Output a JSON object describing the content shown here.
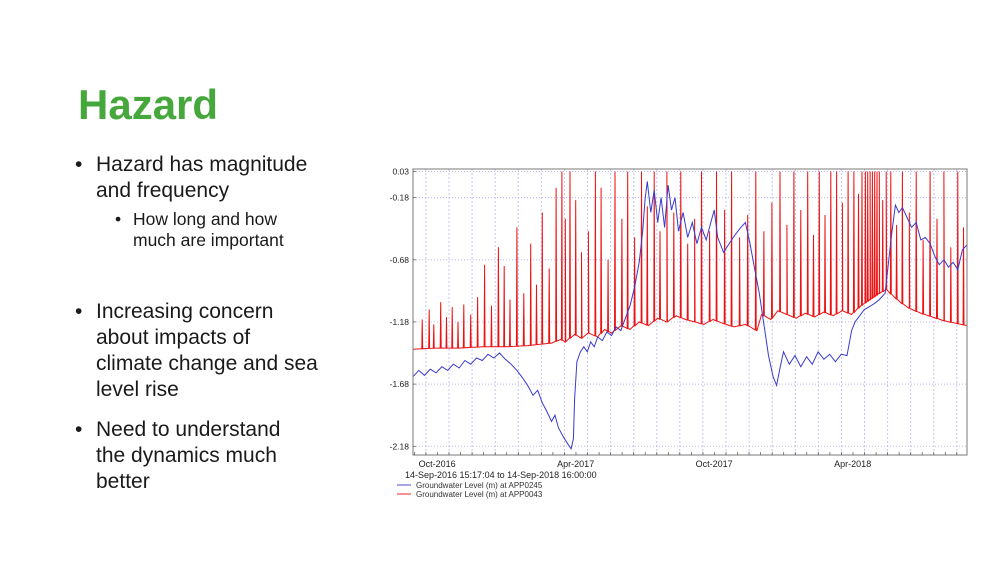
{
  "slide": {
    "title": "Hazard",
    "title_color": "#46a83c",
    "text_color": "#1a1a1a",
    "bullets": [
      {
        "text": "Hazard has magnitude\nand frequency"
      },
      {
        "text": "How long and how\nmuch are important"
      },
      {
        "text": "Increasing concern\nabout impacts of\nclimate change and sea\nlevel rise"
      },
      {
        "text": "Need to understand\nthe dynamics much\nbetter"
      }
    ]
  },
  "chart_data": {
    "type": "line",
    "title": "",
    "subtitle": "14-Sep-2016 15:17:04 to 14-Sep-2018 16:00:00",
    "grid": true,
    "legend_position": "bottom-left",
    "x_axis": {
      "unit": "months since 14-Sep-2016",
      "min": 0,
      "max": 24,
      "labels": [
        "Oct-2016",
        "Apr-2017",
        "Oct-2017",
        "Apr-2018"
      ],
      "label_positions": [
        1.05,
        7.05,
        13.05,
        19.05
      ],
      "month_gridlines": {
        "start": 0.56,
        "step": 1,
        "count": 24
      },
      "minor_tick_step": 0.5
    },
    "y_axis": {
      "unit": "Groundwater Level (m)",
      "min": -2.25,
      "max": 0.05,
      "ticks": [
        0.03,
        -0.18,
        -0.68,
        -1.18,
        -1.68,
        -2.18
      ]
    },
    "colors": {
      "grid": "#c4c4f0",
      "grid_h": "#b8b8ee",
      "border": "#7a7a7a",
      "tick": "#555555"
    },
    "series": [
      {
        "name": "Groundwater Level (m) at APP0245",
        "station": "APP0245",
        "color": "#3a3ace",
        "points": [
          [
            0,
            -1.62
          ],
          [
            0.25,
            -1.57
          ],
          [
            0.5,
            -1.61
          ],
          [
            0.75,
            -1.56
          ],
          [
            1,
            -1.59
          ],
          [
            1.25,
            -1.54
          ],
          [
            1.5,
            -1.57
          ],
          [
            1.75,
            -1.52
          ],
          [
            2,
            -1.55
          ],
          [
            2.25,
            -1.49
          ],
          [
            2.5,
            -1.52
          ],
          [
            2.75,
            -1.47
          ],
          [
            3,
            -1.49
          ],
          [
            3.25,
            -1.44
          ],
          [
            3.5,
            -1.47
          ],
          [
            3.75,
            -1.43
          ],
          [
            4,
            -1.48
          ],
          [
            4.25,
            -1.52
          ],
          [
            4.5,
            -1.57
          ],
          [
            4.75,
            -1.63
          ],
          [
            5,
            -1.7
          ],
          [
            5.2,
            -1.77
          ],
          [
            5.4,
            -1.73
          ],
          [
            5.6,
            -1.83
          ],
          [
            5.8,
            -1.9
          ],
          [
            6,
            -1.98
          ],
          [
            6.15,
            -1.93
          ],
          [
            6.3,
            -2.03
          ],
          [
            6.5,
            -2.1
          ],
          [
            6.7,
            -2.16
          ],
          [
            6.85,
            -2.2
          ],
          [
            6.95,
            -2.12
          ],
          [
            7,
            -1.8
          ],
          [
            7.1,
            -1.5
          ],
          [
            7.25,
            -1.42
          ],
          [
            7.4,
            -1.38
          ],
          [
            7.55,
            -1.42
          ],
          [
            7.7,
            -1.34
          ],
          [
            7.85,
            -1.38
          ],
          [
            8,
            -1.3
          ],
          [
            8.2,
            -1.33
          ],
          [
            8.4,
            -1.26
          ],
          [
            8.6,
            -1.29
          ],
          [
            8.8,
            -1.22
          ],
          [
            9,
            -1.25
          ],
          [
            9.2,
            -1.15
          ],
          [
            9.4,
            -1.05
          ],
          [
            9.6,
            -0.9
          ],
          [
            9.8,
            -0.7
          ],
          [
            9.95,
            -0.45
          ],
          [
            10.05,
            -0.2
          ],
          [
            10.15,
            -0.05
          ],
          [
            10.3,
            -0.3
          ],
          [
            10.45,
            -0.12
          ],
          [
            10.6,
            -0.38
          ],
          [
            10.75,
            -0.18
          ],
          [
            10.9,
            -0.42
          ],
          [
            11.05,
            -0.08
          ],
          [
            11.2,
            -0.28
          ],
          [
            11.35,
            -0.18
          ],
          [
            11.5,
            -0.45
          ],
          [
            11.7,
            -0.3
          ],
          [
            11.9,
            -0.5
          ],
          [
            12.1,
            -0.38
          ],
          [
            12.3,
            -0.55
          ],
          [
            12.5,
            -0.42
          ],
          [
            12.7,
            -0.52
          ],
          [
            12.9,
            -0.38
          ],
          [
            13.05,
            -0.28
          ],
          [
            13.2,
            -0.5
          ],
          [
            13.45,
            -0.62
          ],
          [
            13.7,
            -0.55
          ],
          [
            13.95,
            -0.48
          ],
          [
            14.2,
            -0.42
          ],
          [
            14.4,
            -0.38
          ],
          [
            14.6,
            -0.55
          ],
          [
            14.8,
            -0.75
          ],
          [
            15,
            -0.95
          ],
          [
            15.2,
            -1.2
          ],
          [
            15.4,
            -1.45
          ],
          [
            15.6,
            -1.62
          ],
          [
            15.75,
            -1.69
          ],
          [
            15.9,
            -1.55
          ],
          [
            16.05,
            -1.42
          ],
          [
            16.3,
            -1.52
          ],
          [
            16.55,
            -1.45
          ],
          [
            16.8,
            -1.54
          ],
          [
            17.05,
            -1.46
          ],
          [
            17.3,
            -1.52
          ],
          [
            17.55,
            -1.42
          ],
          [
            17.8,
            -1.48
          ],
          [
            18.05,
            -1.44
          ],
          [
            18.3,
            -1.5
          ],
          [
            18.55,
            -1.44
          ],
          [
            18.8,
            -1.45
          ],
          [
            19,
            -1.25
          ],
          [
            19.15,
            -1.18
          ],
          [
            19.35,
            -1.13
          ],
          [
            19.55,
            -1.08
          ],
          [
            19.75,
            -1.06
          ],
          [
            20,
            -1.03
          ],
          [
            20.2,
            -1
          ],
          [
            20.45,
            -0.95
          ],
          [
            20.6,
            -0.7
          ],
          [
            20.75,
            -0.45
          ],
          [
            20.9,
            -0.24
          ],
          [
            21.05,
            -0.3
          ],
          [
            21.2,
            -0.26
          ],
          [
            21.4,
            -0.34
          ],
          [
            21.6,
            -0.42
          ],
          [
            21.8,
            -0.38
          ],
          [
            22,
            -0.52
          ],
          [
            22.2,
            -0.5
          ],
          [
            22.4,
            -0.55
          ],
          [
            22.6,
            -0.65
          ],
          [
            22.8,
            -0.72
          ],
          [
            23,
            -0.68
          ],
          [
            23.2,
            -0.74
          ],
          [
            23.4,
            -0.7
          ],
          [
            23.6,
            -0.76
          ],
          [
            23.8,
            -0.6
          ],
          [
            24,
            -0.56
          ]
        ]
      },
      {
        "name": "Groundwater Level (m) at APP0043",
        "station": "APP0043",
        "color": "#ee1111",
        "baseline": [
          [
            0,
            -1.4
          ],
          [
            1,
            -1.39
          ],
          [
            2,
            -1.39
          ],
          [
            3,
            -1.38
          ],
          [
            4,
            -1.38
          ],
          [
            5,
            -1.37
          ],
          [
            5.5,
            -1.36
          ],
          [
            6,
            -1.35
          ],
          [
            6.4,
            -1.32
          ],
          [
            6.6,
            -1.34
          ],
          [
            7,
            -1.28
          ],
          [
            7.3,
            -1.31
          ],
          [
            7.6,
            -1.27
          ],
          [
            8,
            -1.3
          ],
          [
            8.3,
            -1.24
          ],
          [
            8.6,
            -1.27
          ],
          [
            9,
            -1.21
          ],
          [
            9.4,
            -1.24
          ],
          [
            9.8,
            -1.18
          ],
          [
            10.2,
            -1.21
          ],
          [
            10.6,
            -1.15
          ],
          [
            11,
            -1.18
          ],
          [
            11.4,
            -1.13
          ],
          [
            11.8,
            -1.16
          ],
          [
            12.2,
            -1.18
          ],
          [
            12.6,
            -1.2
          ],
          [
            13,
            -1.16
          ],
          [
            13.4,
            -1.19
          ],
          [
            13.9,
            -1.22
          ],
          [
            14.4,
            -1.2
          ],
          [
            14.9,
            -1.25
          ],
          [
            15.1,
            -1.12
          ],
          [
            15.5,
            -1.16
          ],
          [
            15.8,
            -1.09
          ],
          [
            16.2,
            -1.12
          ],
          [
            16.6,
            -1.15
          ],
          [
            17,
            -1.11
          ],
          [
            17.4,
            -1.14
          ],
          [
            17.8,
            -1.1
          ],
          [
            18.2,
            -1.13
          ],
          [
            18.6,
            -1.09
          ],
          [
            19,
            -1.12
          ],
          [
            19.4,
            -1.05
          ],
          [
            19.8,
            -1
          ],
          [
            20.2,
            -0.95
          ],
          [
            20.5,
            -0.92
          ],
          [
            20.8,
            -0.97
          ],
          [
            21.1,
            -1.02
          ],
          [
            21.5,
            -1.07
          ],
          [
            22,
            -1.11
          ],
          [
            22.5,
            -1.14
          ],
          [
            23,
            -1.17
          ],
          [
            23.5,
            -1.19
          ],
          [
            24,
            -1.21
          ]
        ],
        "spikes": [
          [
            0.4,
            -1.16
          ],
          [
            0.7,
            -1.08
          ],
          [
            0.9,
            -1.2
          ],
          [
            1.2,
            -1.02
          ],
          [
            1.45,
            -1.14
          ],
          [
            1.7,
            -1.06
          ],
          [
            1.95,
            -1.18
          ],
          [
            2.2,
            -1.04
          ],
          [
            2.5,
            -1.12
          ],
          [
            2.8,
            -0.98
          ],
          [
            3.1,
            -0.72
          ],
          [
            3.4,
            -1.05
          ],
          [
            3.7,
            -0.58
          ],
          [
            3.95,
            -0.73
          ],
          [
            4.2,
            -1
          ],
          [
            4.5,
            -0.42
          ],
          [
            4.8,
            -0.95
          ],
          [
            5.1,
            -0.55
          ],
          [
            5.35,
            -0.88
          ],
          [
            5.6,
            -0.3
          ],
          [
            5.9,
            -0.75
          ],
          [
            6.2,
            -0.1
          ],
          [
            6.45,
            0.03
          ],
          [
            6.6,
            -0.35
          ],
          [
            6.8,
            0.03
          ],
          [
            7.05,
            -0.2
          ],
          [
            7.3,
            -0.62
          ],
          [
            7.6,
            -0.45
          ],
          [
            7.9,
            0.03
          ],
          [
            8.15,
            -0.1
          ],
          [
            8.45,
            -0.68
          ],
          [
            8.75,
            0.03
          ],
          [
            9.05,
            -0.35
          ],
          [
            9.3,
            0.03
          ],
          [
            9.6,
            -0.5
          ],
          [
            9.9,
            0.03
          ],
          [
            10.15,
            -0.25
          ],
          [
            10.45,
            0.03
          ],
          [
            10.7,
            -0.45
          ],
          [
            11,
            0.03
          ],
          [
            11.3,
            -0.3
          ],
          [
            11.6,
            0.03
          ],
          [
            11.9,
            -0.55
          ],
          [
            12.2,
            -0.35
          ],
          [
            12.5,
            0.03
          ],
          [
            12.85,
            -0.45
          ],
          [
            13.15,
            0.03
          ],
          [
            13.5,
            -0.28
          ],
          [
            13.8,
            0.03
          ],
          [
            14.15,
            -0.5
          ],
          [
            14.5,
            -0.32
          ],
          [
            14.85,
            0.03
          ],
          [
            15.2,
            -0.45
          ],
          [
            15.55,
            -0.22
          ],
          [
            15.9,
            0.03
          ],
          [
            16.2,
            -0.4
          ],
          [
            16.5,
            0.03
          ],
          [
            16.8,
            -0.28
          ],
          [
            17.1,
            0.03
          ],
          [
            17.35,
            -0.48
          ],
          [
            17.6,
            0.03
          ],
          [
            17.85,
            -0.32
          ],
          [
            18.1,
            0.03
          ],
          [
            18.35,
            0.03
          ],
          [
            18.6,
            -0.22
          ],
          [
            18.85,
            0.03
          ],
          [
            19.1,
            0.03
          ],
          [
            19.3,
            -0.15
          ],
          [
            19.45,
            0.03
          ],
          [
            19.6,
            0.03
          ],
          [
            19.7,
            0.03
          ],
          [
            19.8,
            0.03
          ],
          [
            19.9,
            0.03
          ],
          [
            20,
            0.03
          ],
          [
            20.1,
            0.03
          ],
          [
            20.2,
            0.03
          ],
          [
            20.35,
            -0.2
          ],
          [
            20.5,
            0.03
          ],
          [
            20.7,
            0.03
          ],
          [
            20.95,
            -0.4
          ],
          [
            21.2,
            0.03
          ],
          [
            21.5,
            -0.3
          ],
          [
            21.8,
            0.03
          ],
          [
            22.1,
            -0.52
          ],
          [
            22.4,
            0.03
          ],
          [
            22.7,
            -0.35
          ],
          [
            23,
            0.03
          ],
          [
            23.3,
            -0.58
          ],
          [
            23.6,
            0.03
          ],
          [
            23.85,
            -0.42
          ]
        ]
      }
    ]
  }
}
